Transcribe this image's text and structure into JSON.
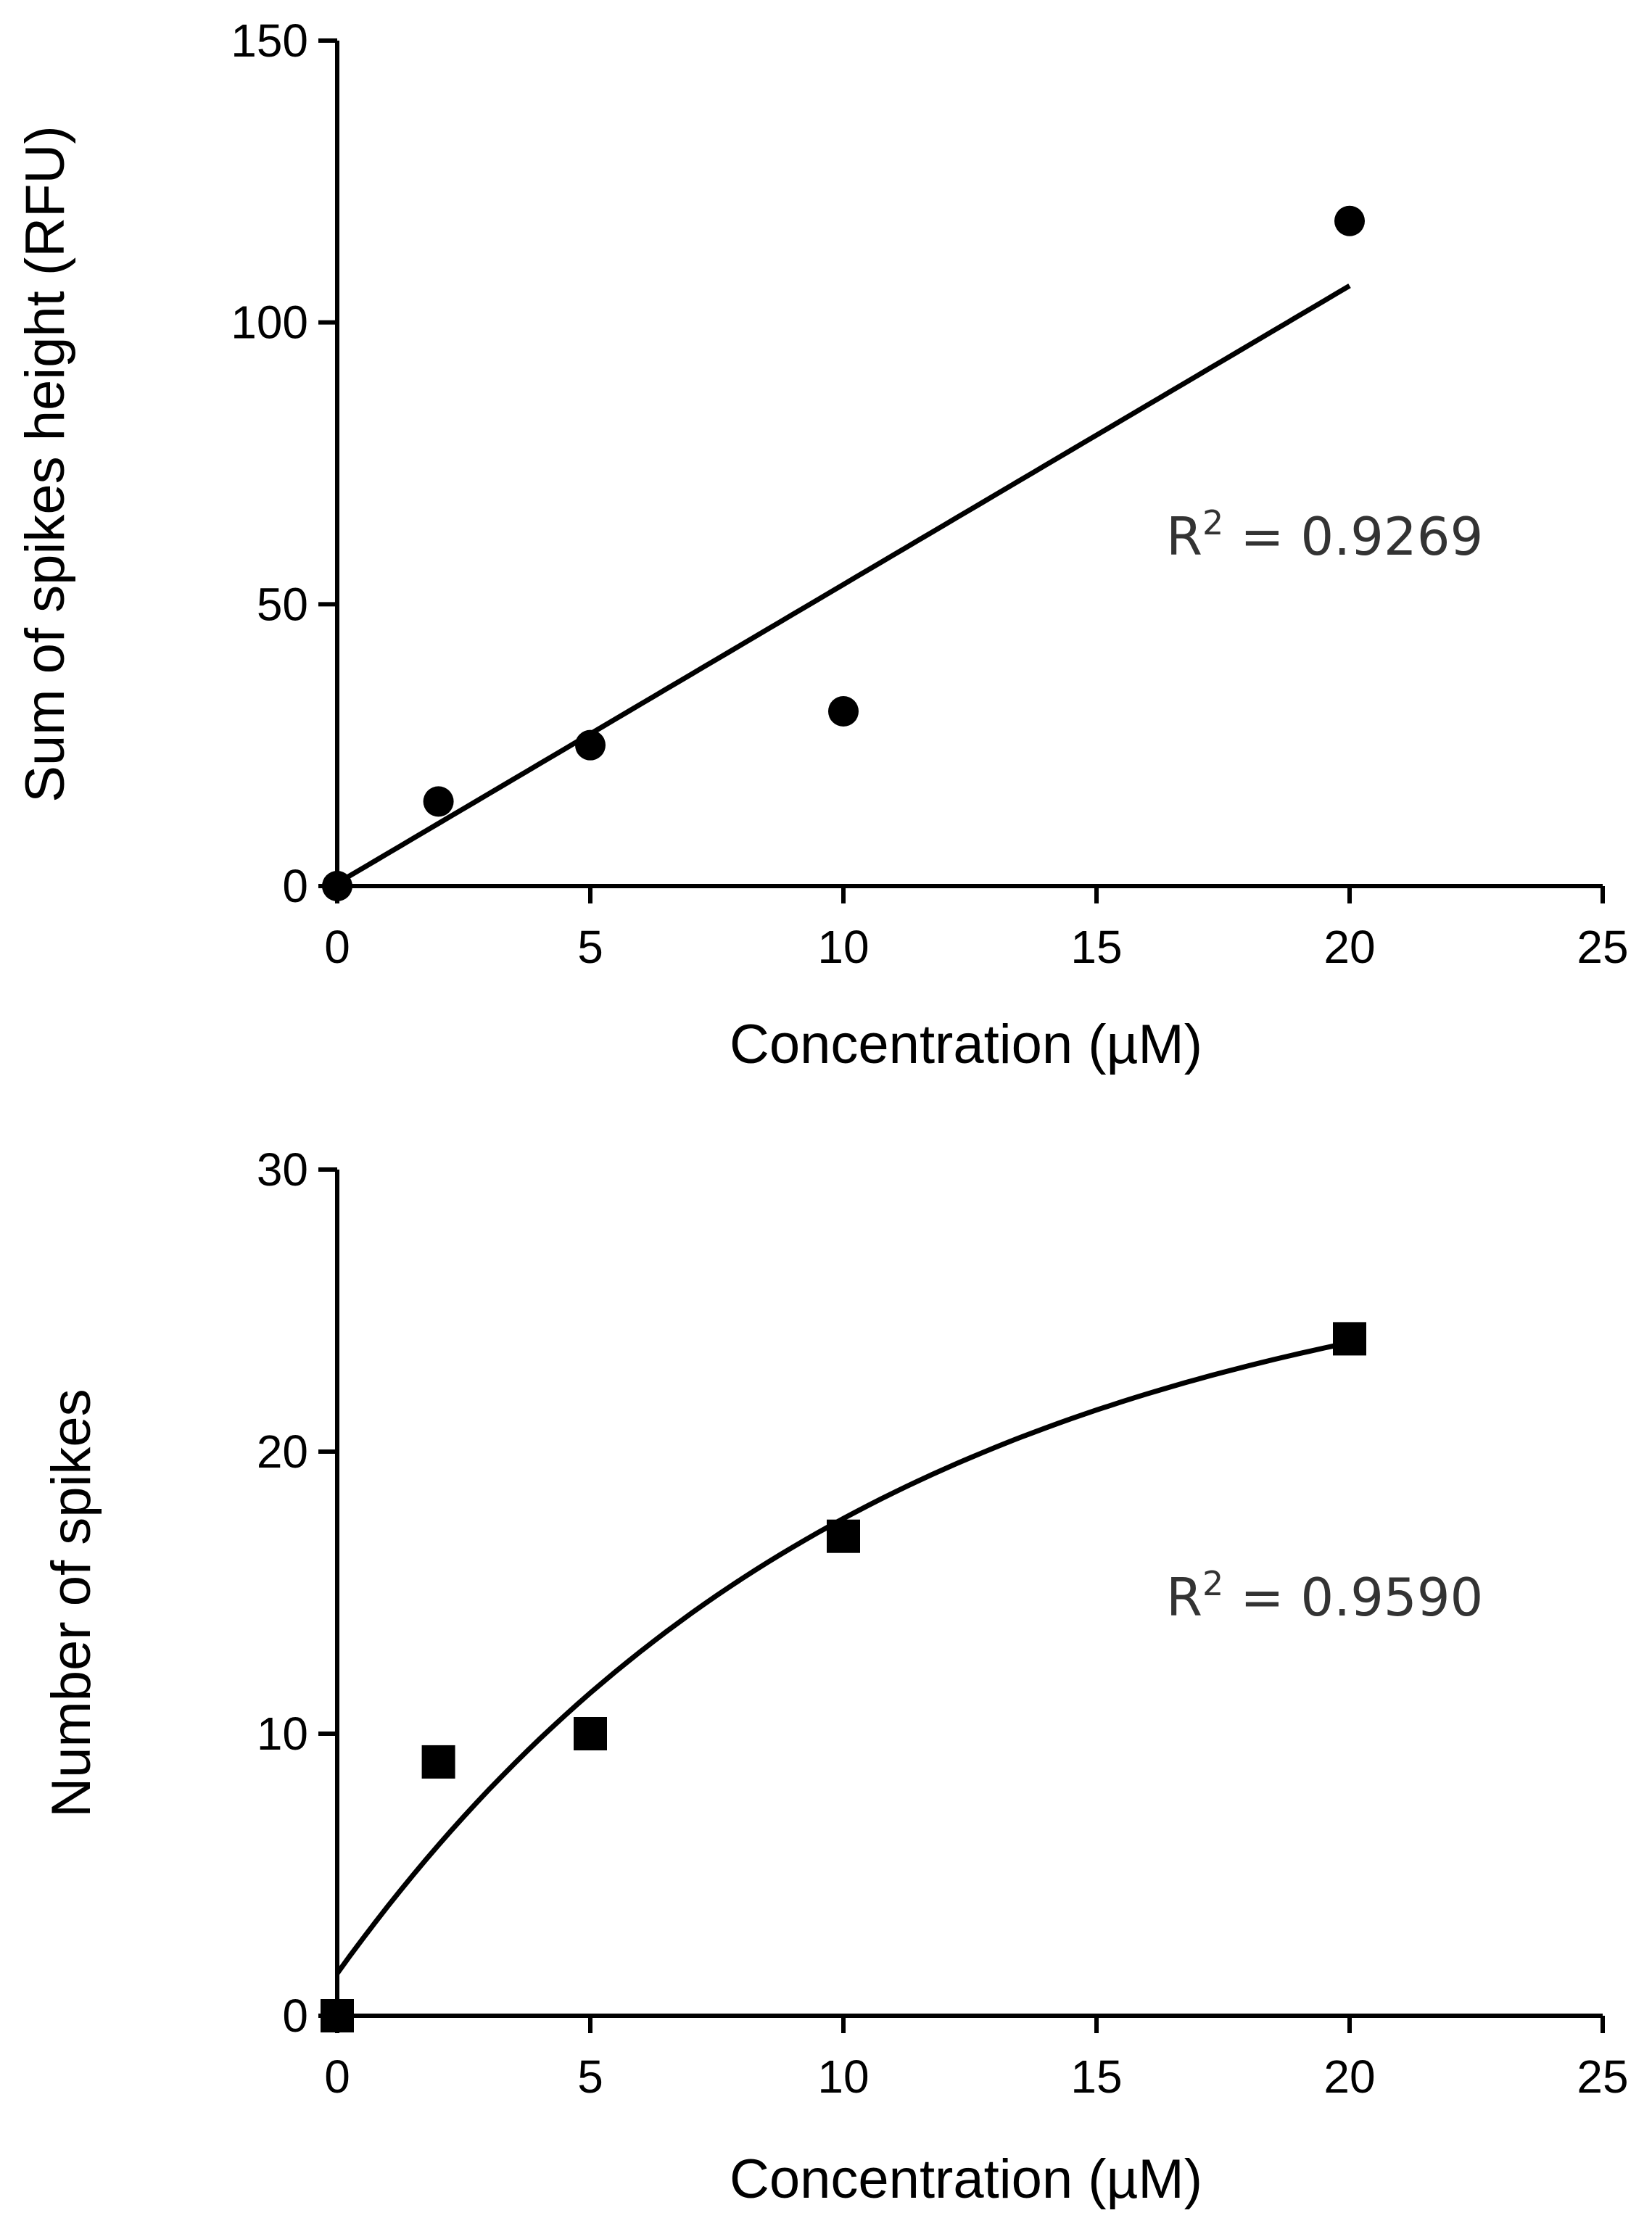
{
  "chart_data": [
    {
      "type": "scatter",
      "marker": "circle",
      "xlabel": "Concentration (µM)",
      "ylabel": "Sum of spikes height (RFU)",
      "xlim": [
        0,
        25
      ],
      "ylim": [
        0,
        150
      ],
      "xticks": [
        0,
        5,
        10,
        15,
        20,
        25
      ],
      "yticks": [
        0,
        50,
        100,
        150
      ],
      "series": [
        {
          "x": [
            0,
            2,
            5,
            10,
            20
          ],
          "y": [
            0,
            15,
            25,
            31,
            118
          ]
        }
      ],
      "fit": {
        "type": "linear",
        "slope": 5.3,
        "intercept": 0.5,
        "x_range": [
          0,
          20
        ]
      },
      "annotation": {
        "r_label": "R",
        "r_exp": "2",
        "r_value": " = 0.9269"
      },
      "grid": false
    },
    {
      "type": "scatter",
      "marker": "square",
      "xlabel": "Concentration (µM)",
      "ylabel": "Number of spikes",
      "xlim": [
        0,
        25
      ],
      "ylim": [
        0,
        30
      ],
      "xticks": [
        0,
        5,
        10,
        15,
        20,
        25
      ],
      "yticks": [
        0,
        10,
        20,
        30
      ],
      "series": [
        {
          "x": [
            0,
            2,
            5,
            10,
            20
          ],
          "y": [
            0,
            9,
            10,
            17,
            24
          ]
        }
      ],
      "fit": {
        "type": "exponential_rise",
        "y0": 1.5,
        "plateau": 27.8,
        "k": 0.095,
        "x_range": [
          0,
          20
        ]
      },
      "annotation": {
        "r_label": "R",
        "r_exp": "2",
        "r_value": " = 0.9590"
      },
      "grid": false
    }
  ]
}
